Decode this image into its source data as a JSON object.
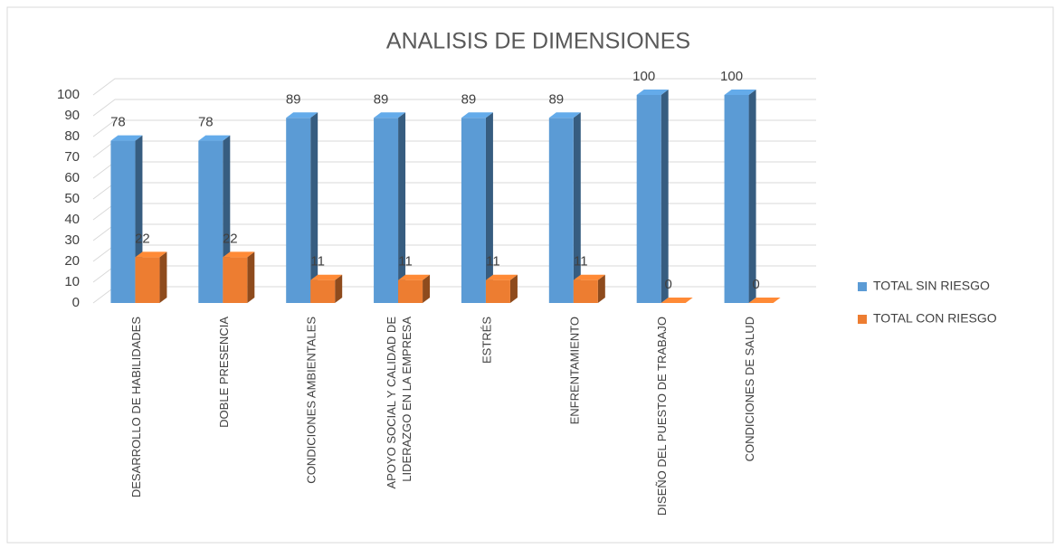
{
  "chart_data": {
    "type": "bar",
    "title": "ANALISIS DE DIMENSIONES",
    "categories": [
      "DESARROLLO DE HABILIDADES",
      "DOBLE PRESENCIA",
      "CONDICIONES AMBIENTALES",
      "APOYO SOCIAL Y CALIDAD DE LIDERAZGO EN LA EMPRESA",
      "ESTRÉS",
      "ENFRENTAMIENTO",
      "DISEÑO DEL PUESTO DE TRABAJO",
      "CONDICIONES DE SALUD"
    ],
    "series": [
      {
        "name": "TOTAL SIN RIESGO",
        "color": "#5b9bd5",
        "values": [
          78,
          78,
          89,
          89,
          89,
          89,
          100,
          100
        ]
      },
      {
        "name": "TOTAL CON RIESGO",
        "color": "#ed7d31",
        "values": [
          22,
          22,
          11,
          11,
          11,
          11,
          0,
          0
        ]
      }
    ],
    "ylim": [
      0,
      100
    ],
    "yticks": [
      0,
      10,
      20,
      30,
      40,
      50,
      60,
      70,
      80,
      90,
      100
    ],
    "grid": true,
    "legend": "right"
  }
}
